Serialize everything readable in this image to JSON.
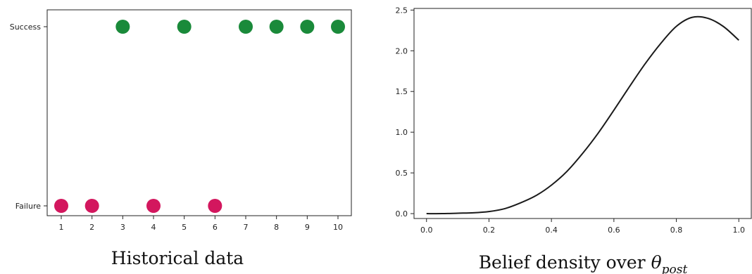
{
  "chart_data": [
    {
      "type": "scatter",
      "title": "Historical data",
      "xlabel": "",
      "ylabel": "",
      "x": [
        1,
        2,
        3,
        4,
        5,
        6,
        7,
        8,
        9,
        10
      ],
      "outcomes": [
        "Failure",
        "Failure",
        "Success",
        "Failure",
        "Success",
        "Failure",
        "Success",
        "Success",
        "Success",
        "Success"
      ],
      "y_categories": [
        "Failure",
        "Success"
      ],
      "x_ticks": [
        "1",
        "2",
        "3",
        "4",
        "5",
        "6",
        "7",
        "8",
        "9",
        "10"
      ],
      "colors": {
        "Success": "#1a8a3a",
        "Failure": "#d3175e"
      },
      "grid": false
    },
    {
      "type": "line",
      "title_prefix": "Belief density over ",
      "title_symbol": "θ",
      "title_subscript": "post",
      "xlabel": "",
      "ylabel": "",
      "x": [
        0.0,
        0.05,
        0.1,
        0.15,
        0.2,
        0.25,
        0.3,
        0.35,
        0.4,
        0.45,
        0.5,
        0.55,
        0.6,
        0.65,
        0.7,
        0.75,
        0.8,
        0.85,
        0.9,
        0.95,
        1.0
      ],
      "y": [
        0.0,
        0.0,
        0.005,
        0.01,
        0.025,
        0.06,
        0.13,
        0.22,
        0.35,
        0.52,
        0.74,
        0.99,
        1.27,
        1.56,
        1.84,
        2.09,
        2.3,
        2.41,
        2.4,
        2.3,
        2.13
      ],
      "x_ticks": [
        "0.0",
        "0.2",
        "0.4",
        "0.6",
        "0.8",
        "1.0"
      ],
      "y_ticks": [
        "0.0",
        "0.5",
        "1.0",
        "1.5",
        "2.0",
        "2.5"
      ],
      "xlim": [
        -0.04,
        1.04
      ],
      "ylim": [
        -0.06,
        2.52
      ],
      "line_color": "#1a1a1a",
      "grid": false
    }
  ]
}
